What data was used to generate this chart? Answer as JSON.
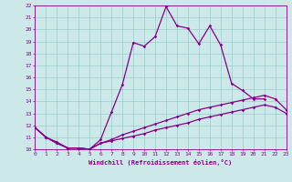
{
  "xlabel": "Windchill (Refroidissement éolien,°C)",
  "background_color": "#cce8e8",
  "line_color": "#880088",
  "grid_color": "#99cccc",
  "xmin": 0,
  "xmax": 23,
  "ymin": 10,
  "ymax": 22,
  "line1_x": [
    0,
    1,
    2,
    3,
    4,
    5,
    6,
    7,
    8,
    9,
    10,
    11,
    12,
    13,
    14,
    15,
    16,
    17,
    18,
    19,
    20,
    21
  ],
  "line1_y": [
    11.8,
    11.0,
    10.6,
    10.1,
    10.1,
    10.0,
    10.8,
    13.1,
    15.4,
    18.9,
    18.6,
    19.4,
    21.9,
    20.3,
    20.1,
    18.8,
    20.3,
    18.7,
    15.5,
    14.9,
    14.2,
    14.2
  ],
  "line2_x": [
    0,
    1,
    2,
    3,
    4,
    5,
    6,
    7,
    8,
    9,
    10,
    11,
    12,
    13,
    14,
    15,
    16,
    17,
    18,
    19,
    20,
    21,
    22,
    23
  ],
  "line2_y": [
    11.8,
    11.0,
    10.5,
    10.1,
    10.1,
    10.0,
    10.5,
    10.8,
    11.2,
    11.5,
    11.8,
    12.1,
    12.4,
    12.7,
    13.0,
    13.3,
    13.5,
    13.7,
    13.9,
    14.1,
    14.3,
    14.5,
    14.2,
    13.3
  ],
  "line3_x": [
    0,
    1,
    2,
    3,
    4,
    5,
    6,
    7,
    8,
    9,
    10,
    11,
    12,
    13,
    14,
    15,
    16,
    17,
    18,
    19,
    20,
    21,
    22,
    23
  ],
  "line3_y": [
    11.8,
    11.0,
    10.5,
    10.1,
    10.1,
    10.0,
    10.5,
    10.7,
    10.9,
    11.1,
    11.3,
    11.6,
    11.8,
    12.0,
    12.2,
    12.5,
    12.7,
    12.9,
    13.1,
    13.3,
    13.5,
    13.7,
    13.5,
    13.0
  ],
  "xticks": [
    0,
    1,
    2,
    3,
    4,
    5,
    6,
    7,
    8,
    9,
    10,
    11,
    12,
    13,
    14,
    15,
    16,
    17,
    18,
    19,
    20,
    21,
    22,
    23
  ],
  "yticks": [
    10,
    11,
    12,
    13,
    14,
    15,
    16,
    17,
    18,
    19,
    20,
    21,
    22
  ]
}
